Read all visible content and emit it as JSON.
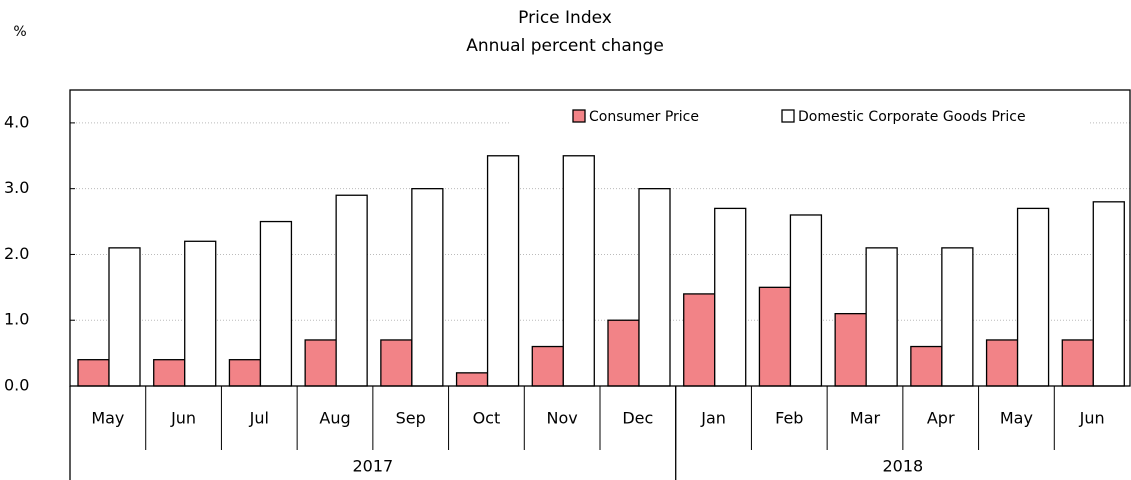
{
  "chart_data": {
    "type": "bar",
    "title": "Price Index",
    "subtitle": "Annual percent change",
    "y_unit": "%",
    "categories": [
      "May",
      "Jun",
      "Jul",
      "Aug",
      "Sep",
      "Oct",
      "Nov",
      "Dec",
      "Jan",
      "Feb",
      "Mar",
      "Apr",
      "May",
      "Jun"
    ],
    "year_groups": [
      {
        "name": "2017",
        "count": 8
      },
      {
        "name": "2018",
        "count": 6
      }
    ],
    "series": [
      {
        "name": "Consumer Price",
        "color": "#f28387",
        "values": [
          0.4,
          0.4,
          0.4,
          0.7,
          0.7,
          0.2,
          0.6,
          1.0,
          1.4,
          1.5,
          1.1,
          0.6,
          0.7,
          0.7
        ]
      },
      {
        "name": "Domestic Corporate Goods Price",
        "color": "#ffffff",
        "values": [
          2.1,
          2.2,
          2.5,
          2.9,
          3.0,
          3.5,
          3.5,
          3.0,
          2.7,
          2.6,
          2.1,
          2.1,
          2.7,
          2.8
        ]
      }
    ],
    "ylim": [
      0,
      4.5
    ],
    "yticks": [
      {
        "value": 0,
        "label": "0.0"
      },
      {
        "value": 1,
        "label": "1.0"
      },
      {
        "value": 2,
        "label": "2.0"
      },
      {
        "value": 3,
        "label": "3.0"
      },
      {
        "value": 4,
        "label": "4.0"
      }
    ],
    "grid": true
  }
}
